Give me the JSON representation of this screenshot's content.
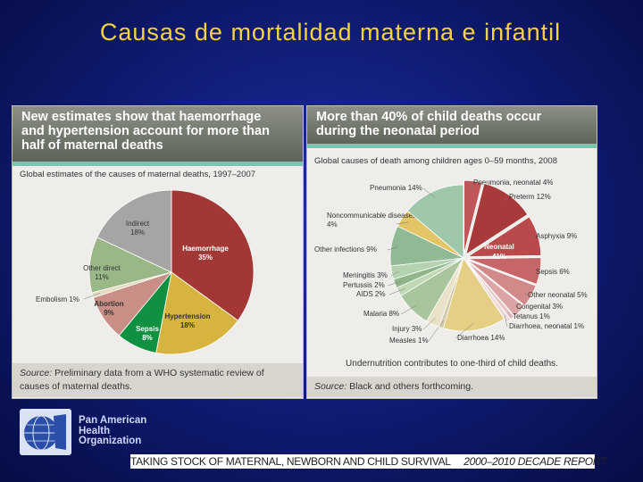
{
  "slide": {
    "title": "Causas de mortalidad materna e infantil",
    "org_name": [
      "Pan American",
      "Health",
      "Organization"
    ],
    "banner": "TAKING STOCK OF MATERNAL, NEWBORN AND CHILD SURVIVAL",
    "banner_right": "2000–2010 DECADE REPORT"
  },
  "left_panel": {
    "header": [
      "New estimates show that haemorrhage",
      "and hypertension account for more than",
      "half of maternal deaths"
    ],
    "subtitle": "Global estimates of the causes of maternal deaths, 1997–2007",
    "source_label": "Source:",
    "source_text": "Preliminary data from a WHO systematic review of causes of maternal deaths."
  },
  "right_panel": {
    "header": [
      "More than 40% of child deaths occur",
      "during the neonatal period"
    ],
    "subtitle": "Global causes of death among children ages 0–59 months, 2008",
    "note": "Undernutrition contributes to one-third of child deaths.",
    "source_label": "Source:",
    "source_text": "Black and others forthcoming."
  },
  "chart_data": [
    {
      "type": "pie",
      "title": "Global estimates of the causes of maternal deaths, 1997–2007",
      "slices": [
        {
          "label": "Haemorrhage",
          "value": 35,
          "display": "35%",
          "color": "#a33735"
        },
        {
          "label": "Hypertension",
          "value": 18,
          "display": "18%",
          "color": "#d7b43f"
        },
        {
          "label": "Sepsis",
          "value": 8,
          "display": "8%",
          "color": "#109142"
        },
        {
          "label": "Abortion",
          "value": 9,
          "display": "9%",
          "color": "#c98f86"
        },
        {
          "label": "Embolism",
          "value": 1,
          "display": "1%",
          "color": "#e6ddc0"
        },
        {
          "label": "Other direct",
          "value": 11,
          "display": "11%",
          "color": "#9ab787"
        },
        {
          "label": "Indirect",
          "value": 18,
          "display": "18%",
          "color": "#a5a5a5"
        }
      ]
    },
    {
      "type": "pie",
      "title": "Global causes of death among children ages 0–59 months, 2008",
      "group_label": [
        "Neonatal",
        "41%"
      ],
      "slices": [
        {
          "label": "Pneumonia, neonatal",
          "value": 4,
          "display": "4%",
          "color": "#c0575a",
          "group": "neonatal"
        },
        {
          "label": "Preterm",
          "value": 12,
          "display": "12%",
          "color": "#a83a3c",
          "group": "neonatal"
        },
        {
          "label": "Asphyxia",
          "value": 9,
          "display": "9%",
          "color": "#b9494b",
          "group": "neonatal"
        },
        {
          "label": "Sepsis",
          "value": 6,
          "display": "6%",
          "color": "#c66668",
          "group": "neonatal"
        },
        {
          "label": "Other neonatal",
          "value": 5,
          "display": "5%",
          "color": "#d2898a",
          "group": "neonatal"
        },
        {
          "label": "Congenital",
          "value": 3,
          "display": "3%",
          "color": "#dca4a4",
          "group": "neonatal"
        },
        {
          "label": "Tetanus",
          "value": 1,
          "display": "1%",
          "color": "#e7c3c3",
          "group": "neonatal"
        },
        {
          "label": "Diarrhoea, neonatal",
          "value": 1,
          "display": "1%",
          "color": "#efd8d8",
          "group": "neonatal"
        },
        {
          "label": "Diarrhoea",
          "value": 14,
          "display": "14%",
          "color": "#e4cf85"
        },
        {
          "label": "Measles",
          "value": 1,
          "display": "1%",
          "color": "#d3c9a8"
        },
        {
          "label": "Injury",
          "value": 3,
          "display": "3%",
          "color": "#e9e2c8"
        },
        {
          "label": "Malaria",
          "value": 8,
          "display": "8%",
          "color": "#a9c59d"
        },
        {
          "label": "AIDS",
          "value": 2,
          "display": "2%",
          "color": "#c1d8b4"
        },
        {
          "label": "Pertussis",
          "value": 2,
          "display": "2%",
          "color": "#8fb58b"
        },
        {
          "label": "Meningitis",
          "value": 3,
          "display": "3%",
          "color": "#b5d2b0"
        },
        {
          "label": "Other infections",
          "value": 9,
          "display": "9%",
          "color": "#8fba95"
        },
        {
          "label": "Noncommunicable diseases",
          "value": 4,
          "display": "4%",
          "color": "#e3c466"
        },
        {
          "label": "Pneumonia",
          "value": 14,
          "display": "14%",
          "color": "#9fc7a9"
        }
      ]
    }
  ]
}
